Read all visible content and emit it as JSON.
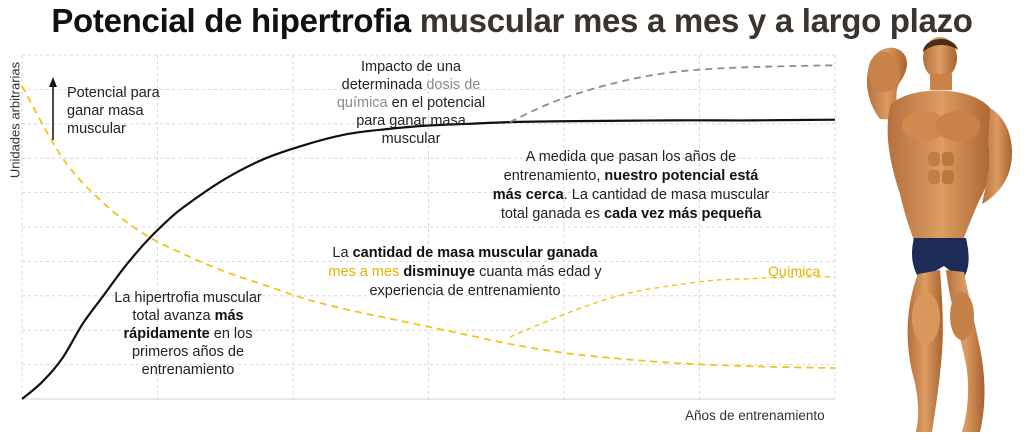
{
  "title": {
    "part1": "Potencial de hipertrofia",
    "part2": "muscular mes a mes y a largo plazo"
  },
  "colors": {
    "total": "#111111",
    "monthly": "#f0c419",
    "chemistry_total": "#8c8c8c",
    "grid": "#cfcfcf"
  },
  "chart_data": {
    "type": "line",
    "title": "Potencial de hipertrofia muscular mes a mes y a largo plazo",
    "xlabel": "Años de entrenamiento",
    "ylabel": "Unidades arbitrarias",
    "xlim": [
      0,
      10
    ],
    "ylim": [
      0,
      10
    ],
    "grid": true,
    "axis_ticks": false,
    "series": [
      {
        "name": "",
        "style": "solid",
        "color": "#111111",
        "x": [
          0,
          0.25,
          0.5,
          0.75,
          1,
          1.25,
          1.5,
          1.75,
          2,
          2.5,
          3,
          3.5,
          4,
          4.5,
          5,
          5.5,
          6,
          6.5,
          7,
          8,
          9,
          10
        ],
        "y": [
          0,
          0.5,
          1.2,
          2.2,
          3.0,
          3.8,
          4.5,
          5.1,
          5.6,
          6.4,
          7.0,
          7.4,
          7.7,
          7.85,
          7.95,
          8.0,
          8.05,
          8.07,
          8.08,
          8.1,
          8.1,
          8.12
        ]
      },
      {
        "name": "",
        "style": "dashed",
        "color": "#f0c419",
        "x": [
          0,
          0.5,
          1,
          1.5,
          2,
          2.5,
          3,
          3.5,
          4,
          4.5,
          5,
          5.5,
          6,
          6.5,
          7,
          8,
          9,
          10
        ],
        "y": [
          9.1,
          7.0,
          5.7,
          4.8,
          4.2,
          3.7,
          3.3,
          2.9,
          2.6,
          2.35,
          2.1,
          1.85,
          1.6,
          1.4,
          1.25,
          1.05,
          0.95,
          0.9
        ]
      },
      {
        "name": "Química",
        "style": "dashed",
        "color": "#f0c419",
        "x": [
          6,
          6.5,
          7,
          7.5,
          8,
          8.5,
          9,
          9.5,
          10
        ],
        "y": [
          1.8,
          2.3,
          2.75,
          3.1,
          3.3,
          3.45,
          3.5,
          3.55,
          3.55
        ]
      },
      {
        "name": "",
        "style": "dashed",
        "color": "#8c8c8c",
        "x": [
          6,
          6.5,
          7,
          7.5,
          8,
          8.5,
          9,
          9.5,
          10
        ],
        "y": [
          8.05,
          8.6,
          9.0,
          9.3,
          9.5,
          9.6,
          9.65,
          9.68,
          9.7
        ]
      }
    ],
    "annotations": [
      {
        "id": "potential_arrow",
        "text": "Potencial para ganar masa muscular"
      }
    ]
  },
  "annotations": {
    "potential_label": "Potencial para ganar masa muscular",
    "impact_l1": "Impacto de una",
    "impact_l2a": "determinada ",
    "impact_l2b": "dosis de",
    "impact_l3a": "química",
    "impact_l3b": " en el potencial",
    "impact_l4": "para ganar masa muscular",
    "medida_l1": "A medida que pasan los años de",
    "medida_l2a": "entrenamiento, ",
    "medida_l2b": "nuestro potencial está",
    "medida_l3a": "más cerca",
    "medida_l3b": ". La cantidad de masa muscular",
    "medida_l4a": "total ganada es ",
    "medida_l4b": "cada vez más pequeña",
    "cantidad_l1a": "La ",
    "cantidad_l1b": "cantidad de masa muscular ganada",
    "cantidad_l2a": "mes a mes",
    "cantidad_l2b": " disminuye",
    "cantidad_l2c": " cuanta más edad y",
    "cantidad_l3": "experiencia de entrenamiento",
    "hiper_l1": "La hipertrofia muscular",
    "hiper_l2a": "total avanza ",
    "hiper_l2b": "más",
    "hiper_l3a": "rápidamente",
    "hiper_l3b": " en los",
    "hiper_l4": "primeros años de",
    "hiper_l5": "entrenamiento",
    "quimica_label": "Química"
  },
  "figure": {
    "icon": "bodybuilder-figure"
  }
}
